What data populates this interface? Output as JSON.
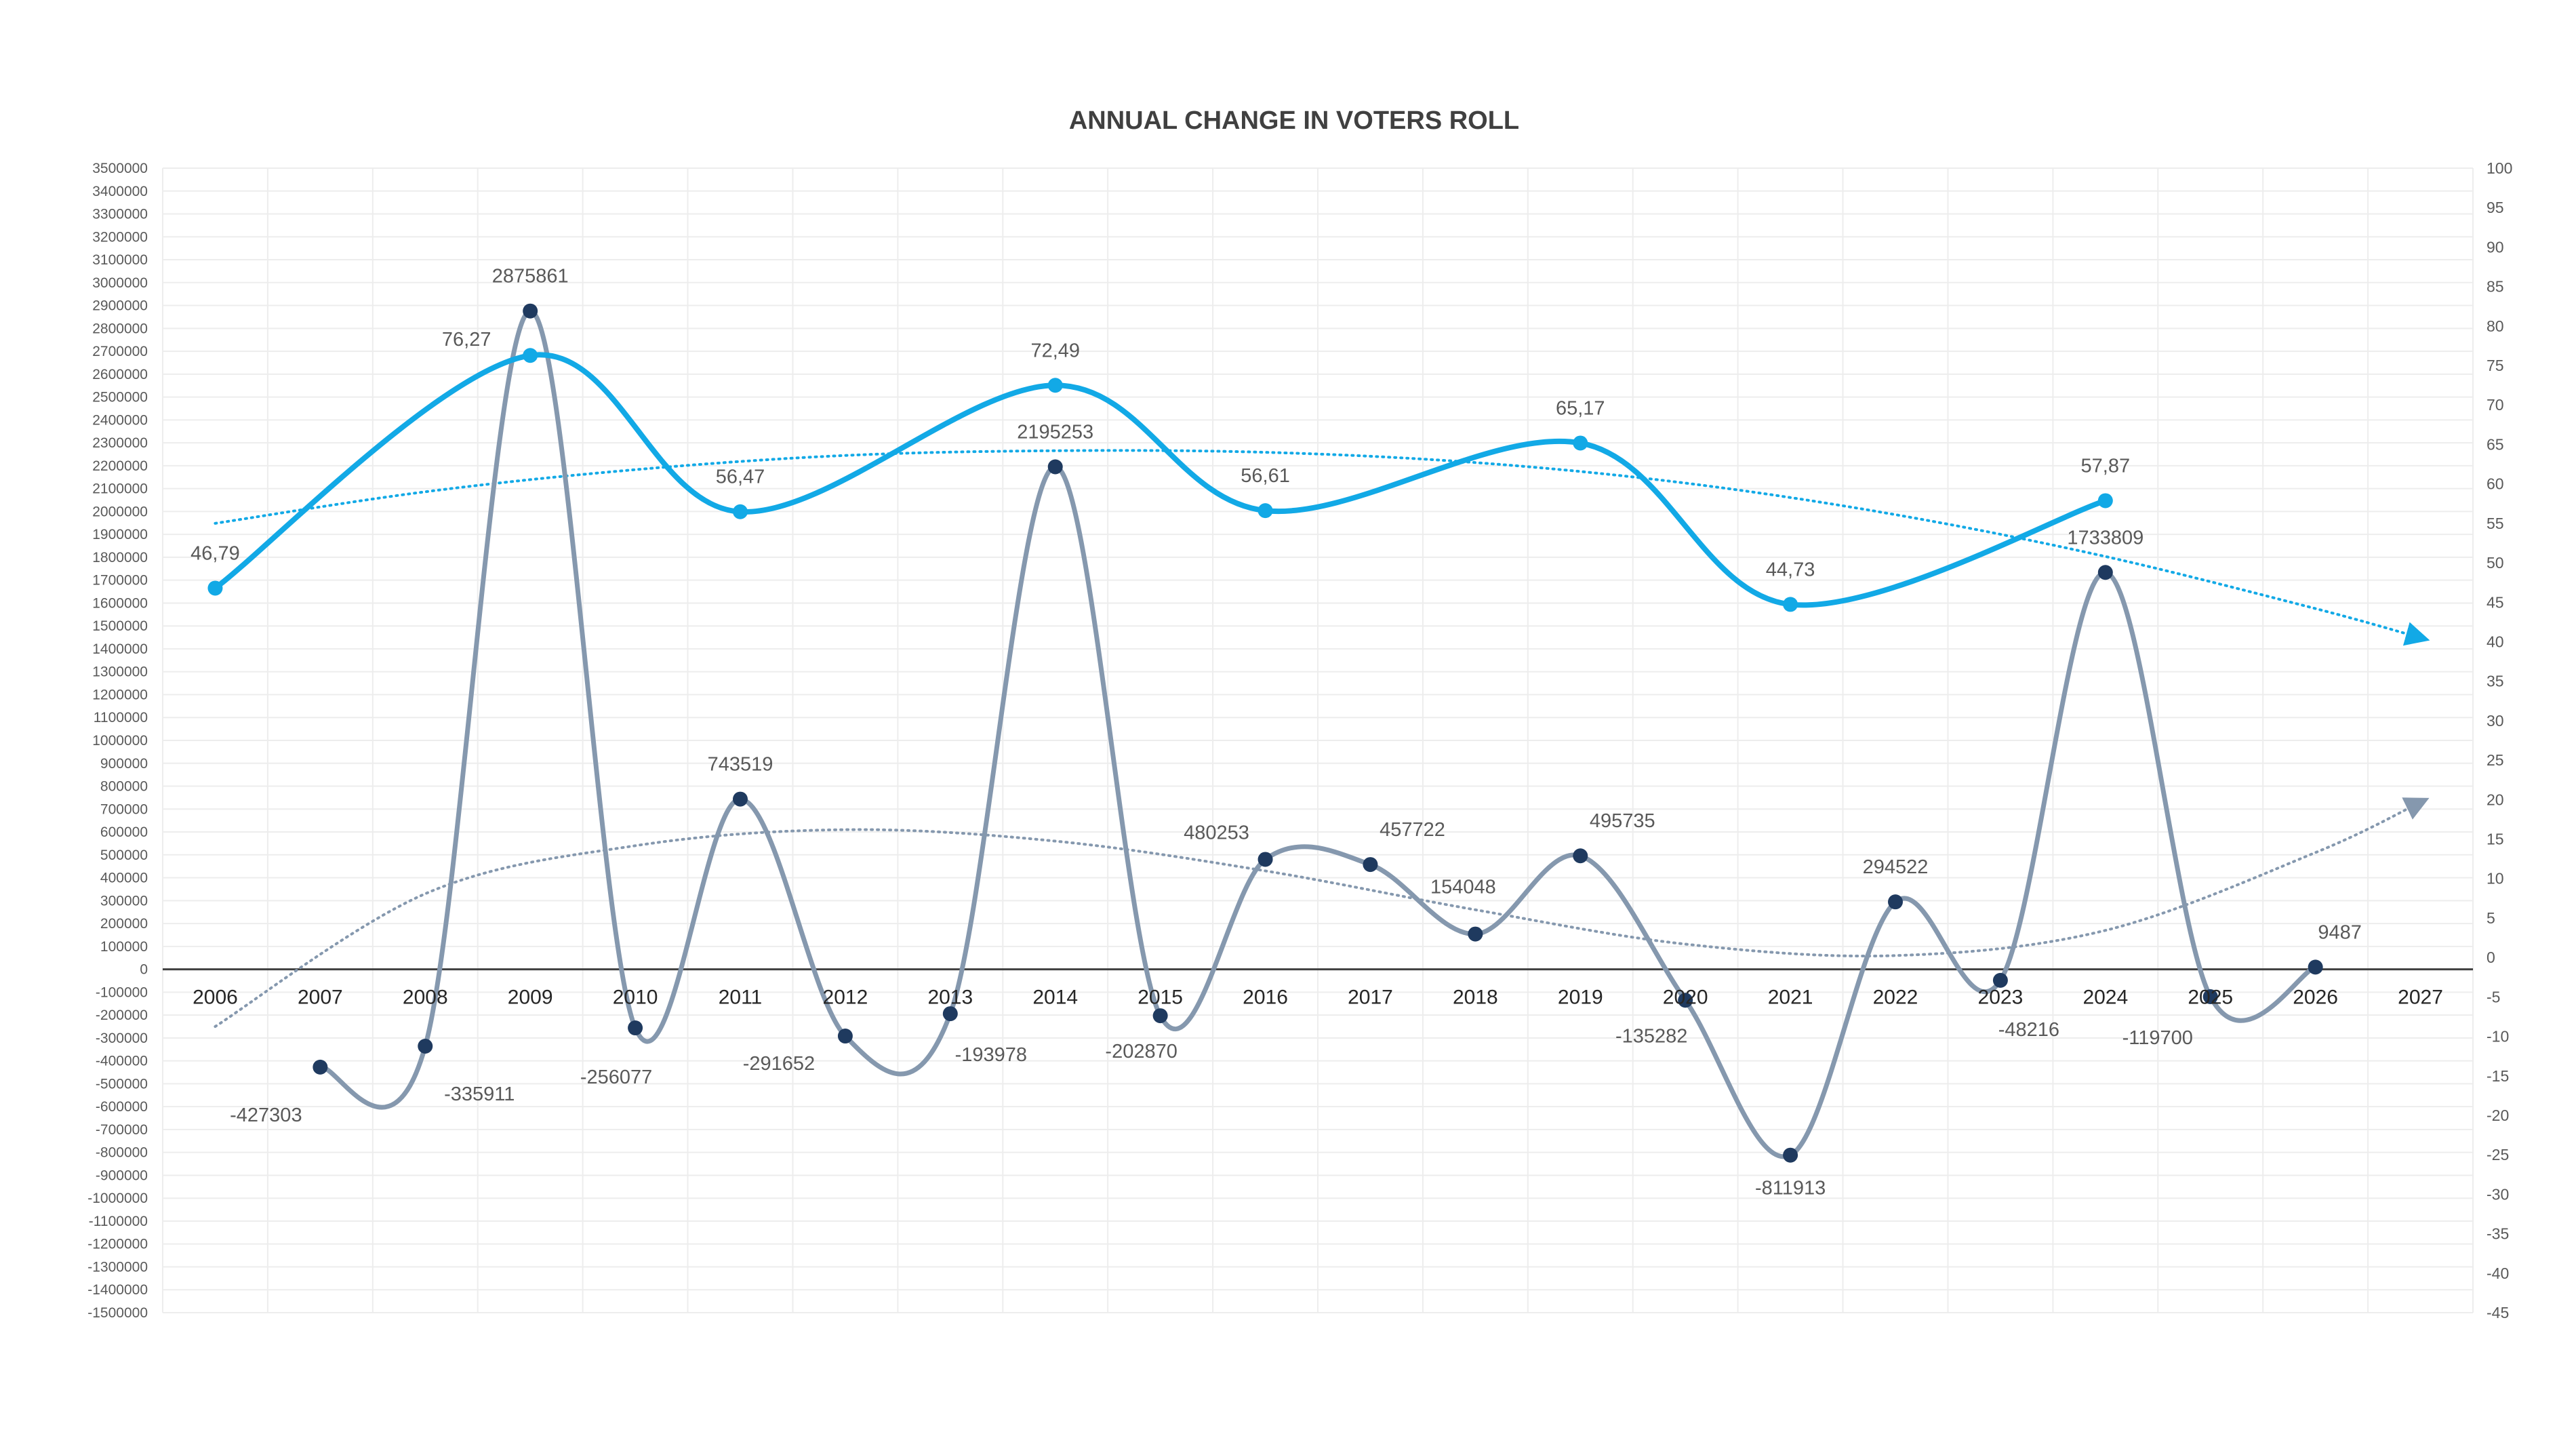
{
  "chart_data": {
    "type": "line",
    "title": "ANNUAL CHANGE IN VOTERS ROLL",
    "categories": [
      "2006",
      "2007",
      "2008",
      "2009",
      "2010",
      "2011",
      "2012",
      "2013",
      "2014",
      "2015",
      "2016",
      "2017",
      "2018",
      "2019",
      "2020",
      "2021",
      "2022",
      "2023",
      "2024",
      "2025",
      "2026",
      "2027"
    ],
    "y_left": {
      "min": -1500000,
      "max": 3500000,
      "step": 100000
    },
    "y_right": {
      "min": -45,
      "max": 100,
      "step": 5
    },
    "grid": true,
    "legend": "none",
    "series": [
      {
        "axis": "left",
        "style": "solid smoothed line with markers",
        "color": "#8598AE",
        "marker_color": "#1F3A5F",
        "points": [
          {
            "x": "2007",
            "y": -427303,
            "label": "-427303"
          },
          {
            "x": "2008",
            "y": -335911,
            "label": "-335911"
          },
          {
            "x": "2009",
            "y": 2875861,
            "label": "2875861"
          },
          {
            "x": "2010",
            "y": -256077,
            "label": "-256077"
          },
          {
            "x": "2011",
            "y": 743519,
            "label": "743519"
          },
          {
            "x": "2012",
            "y": -291652,
            "label": "-291652"
          },
          {
            "x": "2013",
            "y": -193978,
            "label": "-193978"
          },
          {
            "x": "2014",
            "y": 2195253,
            "label": "2195253"
          },
          {
            "x": "2015",
            "y": -202870,
            "label": "-202870"
          },
          {
            "x": "2016",
            "y": 480253,
            "label": "480253"
          },
          {
            "x": "2017",
            "y": 457722,
            "label": "457722"
          },
          {
            "x": "2018",
            "y": 154048,
            "label": "154048"
          },
          {
            "x": "2019",
            "y": 495735,
            "label": "495735"
          },
          {
            "x": "2020",
            "y": -135282,
            "label": "-135282"
          },
          {
            "x": "2021",
            "y": -811913,
            "label": "-811913"
          },
          {
            "x": "2022",
            "y": 294522,
            "label": "294522"
          },
          {
            "x": "2023",
            "y": -48216,
            "label": "-48216"
          },
          {
            "x": "2024",
            "y": 1733809,
            "label": "1733809"
          },
          {
            "x": "2025",
            "y": -119700,
            "label": "-119700"
          },
          {
            "x": "2026",
            "y": 9487,
            "label": "9487"
          }
        ]
      },
      {
        "axis": "right",
        "style": "solid smoothed line with markers",
        "color": "#12A9E6",
        "marker_color": "#12A9E6",
        "points": [
          {
            "x": "2006",
            "y": 46.79,
            "label": "46,79"
          },
          {
            "x": "2009",
            "y": 76.27,
            "label": "76,27"
          },
          {
            "x": "2011",
            "y": 56.47,
            "label": "56,47"
          },
          {
            "x": "2014",
            "y": 72.49,
            "label": "72,49"
          },
          {
            "x": "2016",
            "y": 56.61,
            "label": "56,61"
          },
          {
            "x": "2019",
            "y": 65.17,
            "label": "65,17"
          },
          {
            "x": "2021",
            "y": 44.73,
            "label": "44,73"
          },
          {
            "x": "2024",
            "y": 57.87,
            "label": "57,87"
          }
        ]
      }
    ],
    "trendlines": [
      {
        "of_series": 1,
        "axis": "right",
        "style": "dotted with end arrow",
        "color": "#12A9E6",
        "points": [
          {
            "x": "2006",
            "y": 55
          },
          {
            "x": "2008",
            "y": 59
          },
          {
            "x": "2010",
            "y": 61.8
          },
          {
            "x": "2012",
            "y": 63.6
          },
          {
            "x": "2014",
            "y": 64.2
          },
          {
            "x": "2016",
            "y": 64
          },
          {
            "x": "2018",
            "y": 62.7
          },
          {
            "x": "2020",
            "y": 60.1
          },
          {
            "x": "2022",
            "y": 56.1
          },
          {
            "x": "2024",
            "y": 50.8
          },
          {
            "x": "2026",
            "y": 44.2
          },
          {
            "x": "2027",
            "y": 40.5
          }
        ]
      },
      {
        "of_series": 0,
        "axis": "left",
        "style": "dotted with end arrow",
        "color": "#8598AE",
        "points": [
          {
            "x": "2006",
            "y": -250000
          },
          {
            "x": "2008",
            "y": 330000
          },
          {
            "x": "2010",
            "y": 540000
          },
          {
            "x": "2012",
            "y": 610000
          },
          {
            "x": "2014",
            "y": 560000
          },
          {
            "x": "2016",
            "y": 430000
          },
          {
            "x": "2018",
            "y": 260000
          },
          {
            "x": "2020",
            "y": 110000
          },
          {
            "x": "2022",
            "y": 60000
          },
          {
            "x": "2024",
            "y": 170000
          },
          {
            "x": "2026",
            "y": 510000
          },
          {
            "x": "2027",
            "y": 730000
          }
        ]
      }
    ]
  }
}
